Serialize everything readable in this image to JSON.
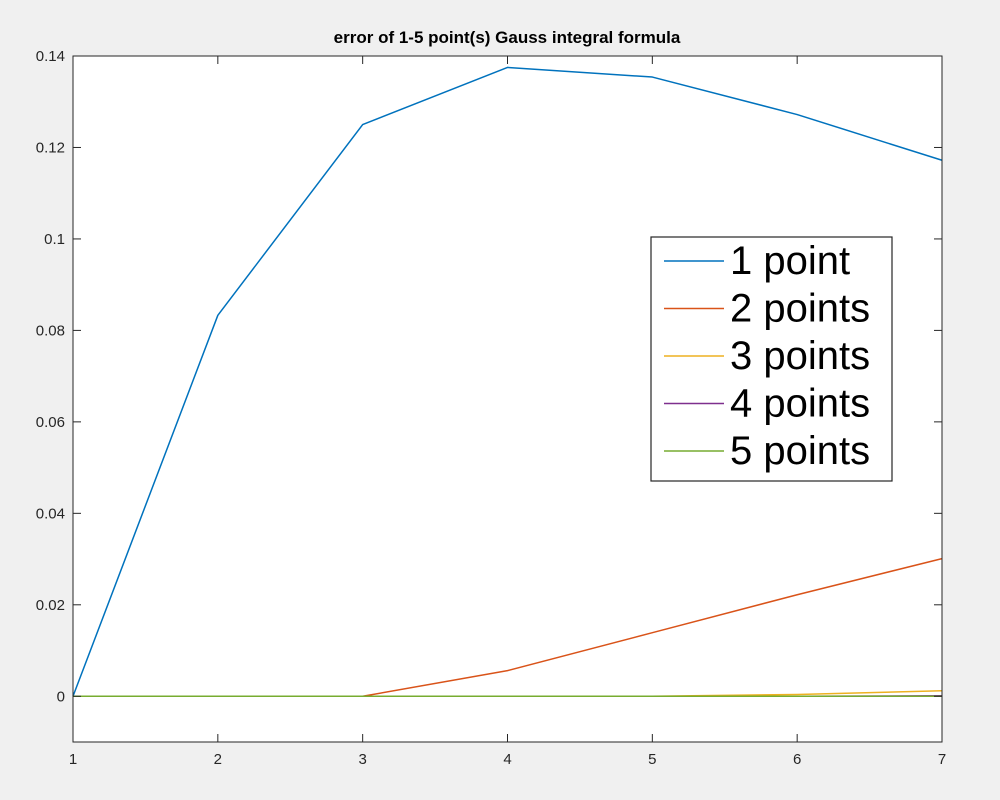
{
  "chart_data": {
    "type": "line",
    "title": "error of 1-5 point(s) Gauss integral formula",
    "xlabel": "",
    "ylabel": "",
    "xlim": [
      1,
      7
    ],
    "ylim": [
      -0.01,
      0.14
    ],
    "x_ticks": [
      1,
      2,
      3,
      4,
      5,
      6,
      7
    ],
    "y_ticks": [
      0,
      0.02,
      0.04,
      0.06,
      0.08,
      0.1,
      0.12,
      0.14
    ],
    "y_tick_labels": [
      "0",
      "0.02",
      "0.04",
      "0.06",
      "0.08",
      "0.1",
      "0.12",
      "0.14"
    ],
    "grid": false,
    "legend_position": "right",
    "x": [
      1,
      2,
      3,
      4,
      5,
      6,
      7
    ],
    "series": [
      {
        "name": "1 point",
        "color": "#0072bd",
        "values": [
          0,
          0.0833,
          0.125,
          0.1375,
          0.1354,
          0.1272,
          0.1172
        ]
      },
      {
        "name": "2 points",
        "color": "#d95319",
        "values": [
          0,
          0,
          0,
          0.0056,
          0.0139,
          0.0222,
          0.0301
        ]
      },
      {
        "name": "3 points",
        "color": "#edb120",
        "values": [
          0,
          0,
          0,
          0,
          0,
          0.0004,
          0.0012
        ]
      },
      {
        "name": "4 points",
        "color": "#7e2f8e",
        "values": [
          0,
          0,
          0,
          0,
          0,
          0,
          0.0001
        ]
      },
      {
        "name": "5 points",
        "color": "#77ac30",
        "values": [
          0,
          0,
          0,
          0,
          0,
          0,
          0
        ]
      }
    ]
  }
}
